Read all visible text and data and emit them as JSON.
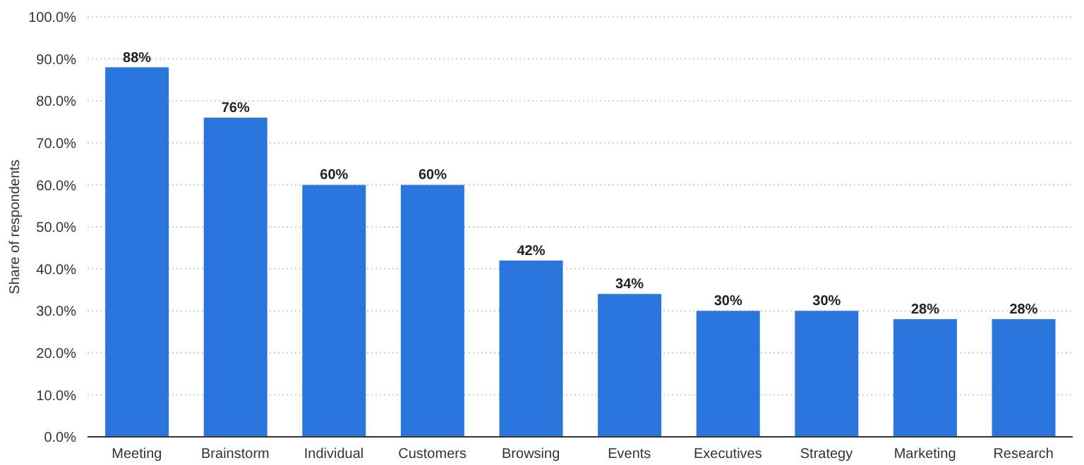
{
  "chart_data": {
    "type": "bar",
    "ylabel": "Share of respondents",
    "categories": [
      "Meeting",
      "Brainstorm",
      "Individual",
      "Customers",
      "Browsing",
      "Events",
      "Executives",
      "Strategy",
      "Marketing",
      "Research"
    ],
    "values": [
      88,
      76,
      60,
      60,
      42,
      34,
      30,
      30,
      28,
      28
    ],
    "value_labels": [
      "88%",
      "76%",
      "60%",
      "60%",
      "42%",
      "34%",
      "30%",
      "30%",
      "28%",
      "28%"
    ],
    "color": "#2a76dd",
    "ylim": [
      0,
      100
    ],
    "yticks": [
      {
        "value": 0,
        "label": "0.0%"
      },
      {
        "value": 10,
        "label": "10.0%"
      },
      {
        "value": 20,
        "label": "20.0%"
      },
      {
        "value": 30,
        "label": "30.0%"
      },
      {
        "value": 40,
        "label": "40.0%"
      },
      {
        "value": 50,
        "label": "50.0%"
      },
      {
        "value": 60,
        "label": "60.0%"
      },
      {
        "value": 70,
        "label": "70.0%"
      },
      {
        "value": 80,
        "label": "80.0%"
      },
      {
        "value": 90,
        "label": "90.0%"
      },
      {
        "value": 100,
        "label": "100.0%"
      }
    ],
    "grid": "y",
    "legend": false
  }
}
